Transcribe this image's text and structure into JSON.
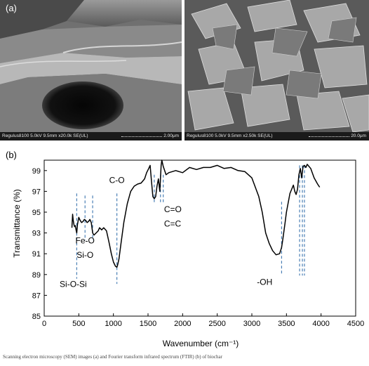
{
  "panel_a": {
    "label": "(a)",
    "left": {
      "info": "Regulus8100 5.0kV 9.5mm x20.0k SE(UL)",
      "scale": "2.00μm"
    },
    "right": {
      "info": "Regulus8100 5.0kV 9.5mm x2.50k SE(UL)",
      "scale": "20.0μm"
    }
  },
  "panel_b": {
    "label": "(b)"
  },
  "chart_data": {
    "type": "line",
    "xlabel": "Wavenumber (cm⁻¹)",
    "ylabel": "Transmittance (%)",
    "xlim": [
      0,
      4500
    ],
    "ylim": [
      85,
      100
    ],
    "x_ticks": [
      "0",
      "500",
      "1000",
      "1500",
      "2000",
      "2500",
      "3000",
      "3500",
      "4000",
      "4500"
    ],
    "y_ticks": [
      "85",
      "87",
      "89",
      "91",
      "93",
      "95",
      "97",
      "99"
    ],
    "series": [
      {
        "x": [
          400,
          410,
          420,
          430,
          440,
          450,
          460,
          470,
          480,
          500,
          520,
          540,
          560,
          580,
          600,
          620,
          640,
          660,
          680,
          700,
          720,
          750,
          780,
          800,
          830,
          860,
          900,
          940,
          970,
          1000,
          1030,
          1050,
          1060,
          1080,
          1110,
          1150,
          1200,
          1250,
          1300,
          1350,
          1400,
          1450,
          1480,
          1510,
          1530,
          1550,
          1570,
          1590,
          1610,
          1630,
          1650,
          1670,
          1690,
          1700,
          1720,
          1740,
          1760,
          1800,
          1900,
          2000,
          2100,
          2200,
          2300,
          2400,
          2500,
          2600,
          2700,
          2800,
          2900,
          3000,
          3100,
          3150,
          3200,
          3250,
          3300,
          3350,
          3400,
          3430,
          3450,
          3480,
          3500,
          3550,
          3600,
          3620,
          3640,
          3660,
          3680,
          3700,
          3720,
          3740,
          3760,
          3780,
          3800,
          3850,
          3900,
          3950,
          3980
        ],
        "y": [
          93.5,
          94.8,
          94.2,
          93.8,
          93.6,
          93.7,
          93.3,
          93.0,
          93.8,
          94.5,
          94.2,
          94.0,
          94.1,
          94.3,
          94.2,
          94.0,
          94.1,
          94.3,
          94.0,
          93.0,
          92.8,
          93.0,
          93.2,
          93.5,
          93.3,
          93.5,
          93.2,
          92.0,
          91.0,
          90.2,
          89.8,
          89.7,
          89.9,
          90.5,
          92.0,
          94.0,
          95.8,
          97.0,
          97.5,
          97.7,
          97.8,
          98.2,
          98.8,
          99.2,
          99.5,
          98.0,
          96.5,
          96.3,
          96.5,
          97.5,
          98.2,
          97.0,
          99.5,
          100.0,
          99.4,
          99.0,
          98.6,
          98.8,
          99.0,
          98.8,
          99.3,
          99.1,
          99.3,
          99.3,
          99.5,
          99.2,
          99.3,
          99.0,
          98.9,
          98.3,
          96.5,
          95.0,
          93.0,
          92.0,
          91.3,
          90.9,
          91.0,
          91.6,
          92.5,
          94.0,
          95.0,
          96.8,
          97.6,
          97.0,
          96.7,
          97.2,
          98.6,
          99.2,
          98.3,
          99.4,
          99.5,
          99.3,
          99.6,
          99.2,
          98.3,
          97.7,
          97.4
        ]
      }
    ],
    "annotations": [
      {
        "text": "C-O",
        "x": 1050
      },
      {
        "text": "C=O",
        "x": 1610
      },
      {
        "text": "C=C",
        "x": 1610
      },
      {
        "text": "Fe-O",
        "x": 590
      },
      {
        "text": "Si-O",
        "x": 590
      },
      {
        "text": "Si-O-Si",
        "x": 470
      },
      {
        "text": "-OH",
        "x": 3550
      }
    ],
    "marker_lines": [
      {
        "x": 470,
        "y_top": 96.8,
        "y_bottom": 88.6
      },
      {
        "x": 590,
        "y_top": 96.6,
        "y_bottom": 92.3
      },
      {
        "x": 700,
        "y_top": 96.6,
        "y_bottom": 92.3
      },
      {
        "x": 1050,
        "y_top": 96.8,
        "y_bottom": 88.1
      },
      {
        "x": 1590,
        "y_top": 98.6,
        "y_bottom": 95.8
      },
      {
        "x": 1680,
        "y_top": 98.6,
        "y_bottom": 95.8
      },
      {
        "x": 1720,
        "y_top": 98.6,
        "y_bottom": 95.8
      },
      {
        "x": 3430,
        "y_top": 96.0,
        "y_bottom": 89.0
      },
      {
        "x": 3690,
        "y_top": 99.5,
        "y_bottom": 88.9
      },
      {
        "x": 3730,
        "y_top": 99.5,
        "y_bottom": 88.9
      },
      {
        "x": 3760,
        "y_top": 99.5,
        "y_bottom": 88.9
      }
    ],
    "line_color": "#000000",
    "marker_color": "#4a7fb5",
    "grid": false
  },
  "caption": "Scanning electron microscopy (SEM) images (a) and Fourier transform infrared spectrum (FTIR) (b) of biochar"
}
